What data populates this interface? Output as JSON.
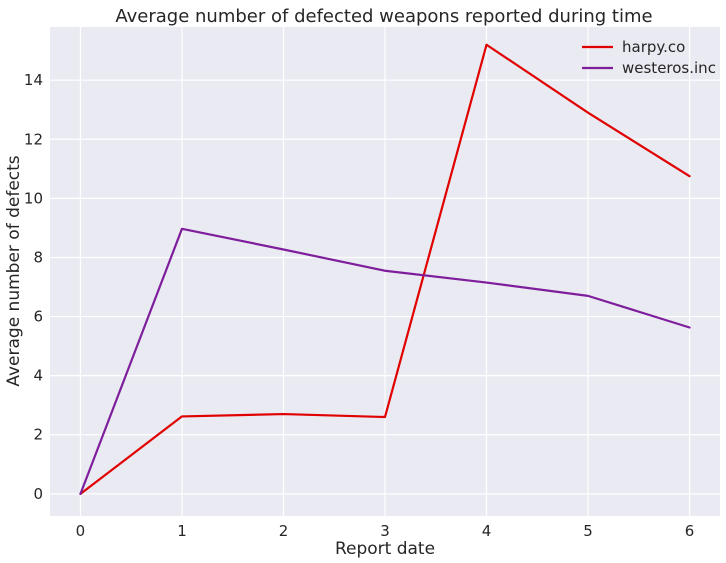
{
  "chart_data": {
    "type": "line",
    "title": "Average number of defected weapons reported during time",
    "xlabel": "Report date",
    "ylabel": "Average number of defects",
    "x": [
      0,
      1,
      2,
      3,
      4,
      5,
      6
    ],
    "xticks": [
      "0",
      "1",
      "2",
      "3",
      "4",
      "5",
      "6"
    ],
    "yticks": [
      "0",
      "2",
      "4",
      "6",
      "8",
      "10",
      "12",
      "14"
    ],
    "xlim": [
      -0.3,
      6.3
    ],
    "ylim": [
      -0.75,
      15.8
    ],
    "grid": true,
    "legend_position": "top-right",
    "background_color": "#eaeaf2",
    "series": [
      {
        "name": "harpy.co",
        "color": "#e00000",
        "values": [
          0,
          2.62,
          2.7,
          2.6,
          15.2,
          12.9,
          10.75
        ]
      },
      {
        "name": "westeros.inc",
        "color": "#7e1e9c",
        "values": [
          0,
          8.97,
          8.27,
          7.55,
          7.15,
          6.7,
          5.63
        ]
      }
    ]
  }
}
